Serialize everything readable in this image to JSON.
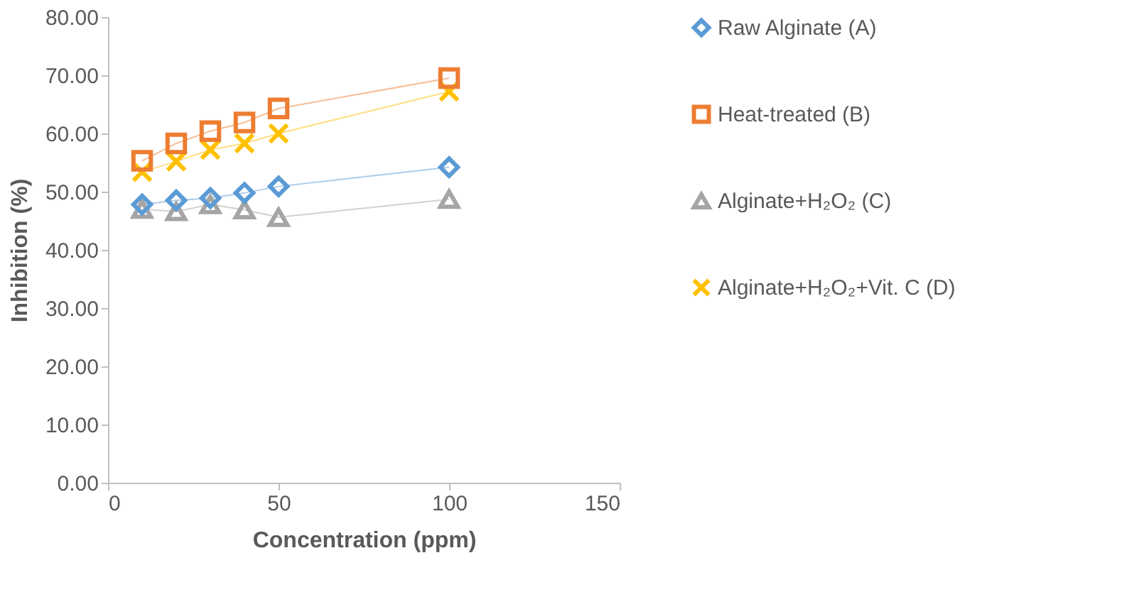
{
  "chart_data": {
    "type": "line",
    "xlabel": "Concentration (ppm)",
    "ylabel": "Inhibition (%)",
    "x": [
      10,
      20,
      30,
      40,
      50,
      100
    ],
    "series": [
      {
        "name": "Raw Alginate (A)",
        "color": "#5b9bd5",
        "marker": "diamond",
        "values": [
          47.8,
          48.5,
          48.9,
          49.8,
          50.9,
          54.2
        ]
      },
      {
        "name": "Heat-treated (B)",
        "color": "#ed7d31",
        "marker": "square",
        "values": [
          55.3,
          58.3,
          60.4,
          61.9,
          64.3,
          69.5
        ]
      },
      {
        "name": "Alginate+H₂O₂ (C)",
        "color": "#a5a5a5",
        "marker": "triangle",
        "values": [
          47.0,
          46.6,
          47.8,
          46.9,
          45.6,
          48.7
        ]
      },
      {
        "name": "Alginate+H₂O₂+Vit. C (D)",
        "color": "#ffc000",
        "marker": "cross",
        "values": [
          53.4,
          55.2,
          57.2,
          58.3,
          60.0,
          67.2
        ]
      }
    ],
    "xlim": [
      0,
      150
    ],
    "xticks": [
      0,
      50,
      100,
      150
    ],
    "ylim": [
      0,
      80
    ],
    "yticks": [
      {
        "value": 0,
        "label": "0.00"
      },
      {
        "value": 10,
        "label": "10.00"
      },
      {
        "value": 20,
        "label": "20.00"
      },
      {
        "value": 30,
        "label": "30.00"
      },
      {
        "value": 40,
        "label": "40.00"
      },
      {
        "value": 50,
        "label": "50.00"
      },
      {
        "value": 60,
        "label": "60.00"
      },
      {
        "value": 70,
        "label": "70.00"
      },
      {
        "value": 80,
        "label": "80.00"
      }
    ],
    "grid": false,
    "legend": "right",
    "line_style": "solid"
  }
}
